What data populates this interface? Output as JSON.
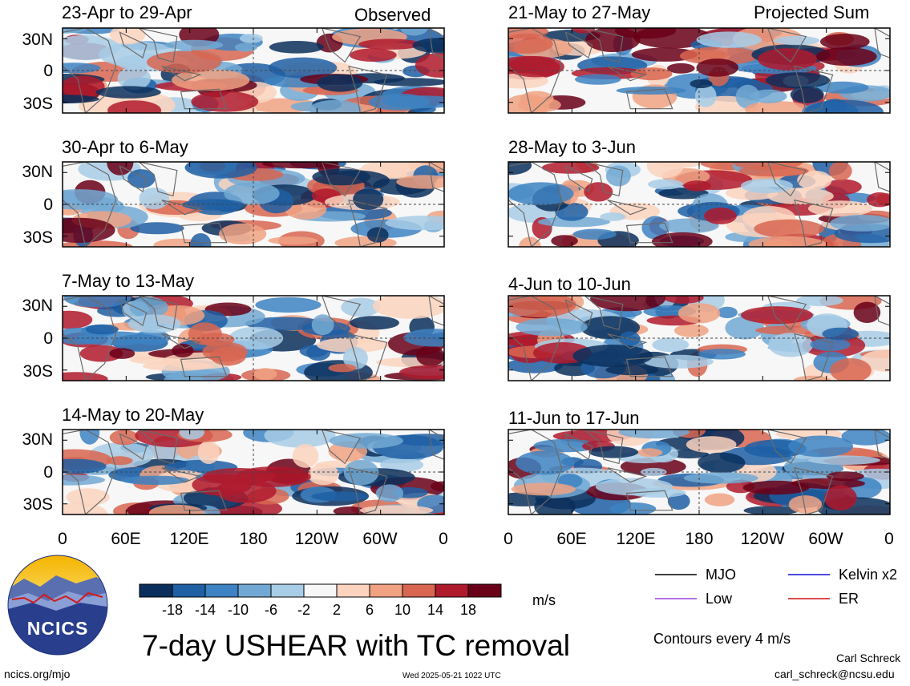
{
  "chart_data": {
    "type": "heatmap",
    "title": "7-day USHEAR with TC removal",
    "variable": "USHEAR",
    "units": "m/s",
    "contour_note": "Contours every 4 m/s",
    "columns": [
      {
        "header": "Observed",
        "panels": [
          {
            "label": "23-Apr to 29-Apr"
          },
          {
            "label": "30-Apr to 6-May"
          },
          {
            "label": "7-May to 13-May"
          },
          {
            "label": "14-May to 20-May"
          }
        ]
      },
      {
        "header": "Projected Sum",
        "panels": [
          {
            "label": "21-May to 27-May"
          },
          {
            "label": "28-May to 3-Jun"
          },
          {
            "label": "4-Jun to 10-Jun"
          },
          {
            "label": "11-Jun to 17-Jun"
          }
        ]
      }
    ],
    "y_ticks": [
      "30N",
      "0",
      "30S"
    ],
    "x_ticks": [
      "0",
      "60E",
      "120E",
      "180",
      "120W",
      "60W",
      "0"
    ],
    "colorbar": {
      "tick_labels": [
        "-18",
        "-14",
        "-10",
        "-6",
        "-2",
        "2",
        "6",
        "10",
        "14",
        "18"
      ],
      "colors": [
        "#0b2f5c",
        "#1f5fa4",
        "#3d82c2",
        "#72a9d4",
        "#a8cde6",
        "#f7f7f7",
        "#fbd3be",
        "#f0a282",
        "#d86651",
        "#b01a2d",
        "#6a0018"
      ]
    },
    "legend": [
      {
        "label": "MJO",
        "color": "#000000"
      },
      {
        "label": "Kelvin x2",
        "color": "#1010d0"
      },
      {
        "label": "Low",
        "color": "#a040e0"
      },
      {
        "label": "ER",
        "color": "#d01010"
      }
    ]
  },
  "logo": {
    "text": "NCICS"
  },
  "footer": {
    "url": "ncics.org/mjo",
    "timestamp": "Wed 2025-05-21 1022 UTC",
    "author": "Carl Schreck",
    "email": "carl_schreck@ncsu.edu"
  }
}
